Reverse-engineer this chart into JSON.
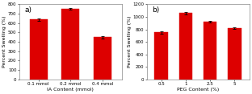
{
  "panel_a": {
    "title": "a)",
    "xlabel": "IA Content (mmol)",
    "ylabel": "Percent Swelling (%)",
    "categories": [
      "0.1 mmol",
      "0.2 mmol",
      "0.4 mmol"
    ],
    "values": [
      640,
      750,
      450
    ],
    "errors": [
      12,
      10,
      12
    ],
    "ylim": [
      0,
      800
    ],
    "yticks": [
      0,
      100,
      200,
      300,
      400,
      500,
      600,
      700,
      800
    ],
    "bar_color": "#DD0000",
    "bar_width": 0.55,
    "edge_color": "#DD0000"
  },
  "panel_b": {
    "title": "b)",
    "xlabel": "PEG Content (%)",
    "ylabel": "Percent Swelling (%)",
    "categories": [
      "0.5",
      "1",
      "2.5",
      "5"
    ],
    "values": [
      750,
      1060,
      920,
      820
    ],
    "errors": [
      18,
      15,
      12,
      14
    ],
    "ylim": [
      0,
      1200
    ],
    "yticks": [
      0,
      200,
      400,
      600,
      800,
      1000,
      1200
    ],
    "bar_color": "#DD0000",
    "bar_width": 0.55,
    "edge_color": "#DD0000"
  },
  "bg_color": "#ffffff",
  "tick_fontsize": 4.0,
  "axis_label_fontsize": 4.5,
  "title_fontsize": 6.5
}
